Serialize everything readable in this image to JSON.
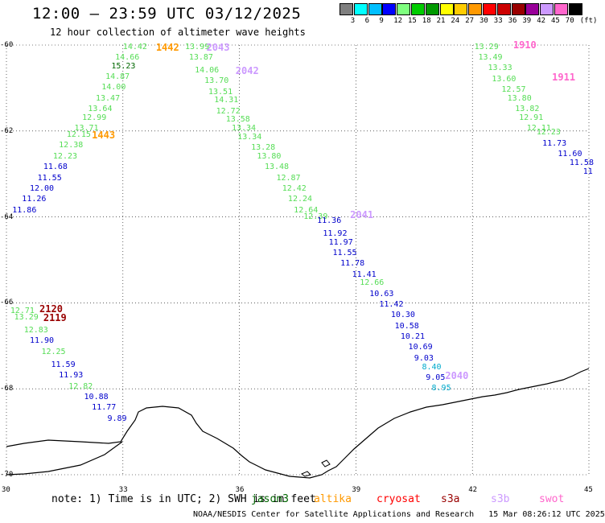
{
  "header": {
    "title": "12:00 – 23:59 UTC 03/12/2025",
    "subtitle": "12 hour collection of altimeter wave heights"
  },
  "legend": {
    "unit": "(ft)",
    "colors": [
      "#7f7f7f",
      "#00ffff",
      "#00bfff",
      "#0000ff",
      "#7fff7f",
      "#00cc00",
      "#009900",
      "#ffff00",
      "#ffcc00",
      "#ff9900",
      "#ff0000",
      "#cc0000",
      "#990000",
      "#990099",
      "#cc99ff",
      "#ff66cc",
      "#000000"
    ],
    "labels": [
      "3",
      "6",
      "9",
      "12",
      "15",
      "18",
      "21",
      "24",
      "27",
      "30",
      "33",
      "36",
      "39",
      "42",
      "45",
      "70"
    ]
  },
  "axes": {
    "y_labels": [
      "-60",
      "-62",
      "-64",
      "-66",
      "-68",
      "-70"
    ],
    "x_labels": [
      "30",
      "33",
      "36",
      "39",
      "42",
      "45"
    ]
  },
  "chart_data": {
    "type": "map",
    "lon_range": [
      30,
      45
    ],
    "lat_range": [
      -70,
      -60
    ],
    "tracks": [
      {
        "points": [
          {
            "v": "14.42",
            "lat": -60.05,
            "lon": 33.0,
            "c": "lg"
          },
          {
            "v": "14.66",
            "lat": -60.3,
            "lon": 32.8,
            "c": "lg"
          },
          {
            "v": "15.23",
            "lat": -60.5,
            "lon": 32.7,
            "c": "dg"
          },
          {
            "v": "14.87",
            "lat": -60.75,
            "lon": 32.55,
            "c": "lg"
          },
          {
            "v": "14.00",
            "lat": -61.0,
            "lon": 32.45,
            "c": "lg"
          },
          {
            "v": "13.47",
            "lat": -61.25,
            "lon": 32.3,
            "c": "lg"
          },
          {
            "v": "13.64",
            "lat": -61.5,
            "lon": 32.1,
            "c": "lg"
          },
          {
            "v": "12.99",
            "lat": -61.7,
            "lon": 31.95,
            "c": "lg"
          },
          {
            "v": "13.71",
            "lat": -61.95,
            "lon": 31.75,
            "c": "lg"
          },
          {
            "v": "12.15",
            "lat": -62.1,
            "lon": 31.55,
            "c": "lg"
          },
          {
            "v": "12.38",
            "lat": -62.35,
            "lon": 31.35,
            "c": "lg"
          },
          {
            "v": "12.23",
            "lat": -62.6,
            "lon": 31.2,
            "c": "lg"
          },
          {
            "v": "11.68",
            "lat": -62.85,
            "lon": 30.95,
            "c": "b"
          },
          {
            "v": "11.55",
            "lat": -63.1,
            "lon": 30.8,
            "c": "b"
          },
          {
            "v": "12.00",
            "lat": -63.35,
            "lon": 30.6,
            "c": "b"
          },
          {
            "v": "11.26",
            "lat": -63.6,
            "lon": 30.4,
            "c": "b"
          },
          {
            "v": "11.86",
            "lat": -63.85,
            "lon": 30.15,
            "c": "b"
          }
        ]
      },
      {
        "points": [
          {
            "v": "13.99",
            "lat": -60.05,
            "lon": 34.6,
            "c": "lg"
          },
          {
            "v": "13.87",
            "lat": -60.3,
            "lon": 34.7,
            "c": "lg"
          },
          {
            "v": "14.06",
            "lat": -60.6,
            "lon": 34.85,
            "c": "lg"
          },
          {
            "v": "13.70",
            "lat": -60.85,
            "lon": 35.1,
            "c": "lg"
          },
          {
            "v": "13.51",
            "lat": -61.1,
            "lon": 35.2,
            "c": "lg"
          },
          {
            "v": "14.31",
            "lat": -61.3,
            "lon": 35.35,
            "c": "lg"
          },
          {
            "v": "12.72",
            "lat": -61.55,
            "lon": 35.4,
            "c": "lg"
          },
          {
            "v": "13.58",
            "lat": -61.75,
            "lon": 35.65,
            "c": "lg"
          },
          {
            "v": "13.34",
            "lat": -61.95,
            "lon": 35.8,
            "c": "lg"
          },
          {
            "v": "13.34",
            "lat": -62.15,
            "lon": 35.95,
            "c": "lg"
          },
          {
            "v": "13.28",
            "lat": -62.4,
            "lon": 36.3,
            "c": "lg"
          },
          {
            "v": "13.80",
            "lat": -62.6,
            "lon": 36.45,
            "c": "lg"
          },
          {
            "v": "13.48",
            "lat": -62.85,
            "lon": 36.65,
            "c": "lg"
          },
          {
            "v": "12.87",
            "lat": -63.1,
            "lon": 36.95,
            "c": "lg"
          },
          {
            "v": "12.42",
            "lat": -63.35,
            "lon": 37.1,
            "c": "lg"
          },
          {
            "v": "12.24",
            "lat": -63.6,
            "lon": 37.25,
            "c": "lg"
          },
          {
            "v": "12.64",
            "lat": -63.85,
            "lon": 37.4,
            "c": "lg"
          },
          {
            "v": "12.39",
            "lat": -64.0,
            "lon": 37.65,
            "c": "lg"
          },
          {
            "v": "11.36",
            "lat": -64.1,
            "lon": 38.0,
            "c": "b"
          },
          {
            "v": "11.92",
            "lat": -64.4,
            "lon": 38.15,
            "c": "b"
          },
          {
            "v": "11.97",
            "lat": -64.6,
            "lon": 38.3,
            "c": "b"
          },
          {
            "v": "11.55",
            "lat": -64.85,
            "lon": 38.4,
            "c": "b"
          },
          {
            "v": "11.78",
            "lat": -65.1,
            "lon": 38.6,
            "c": "b"
          },
          {
            "v": "11.41",
            "lat": -65.35,
            "lon": 38.9,
            "c": "b"
          },
          {
            "v": "12.66",
            "lat": -65.55,
            "lon": 39.1,
            "c": "lg"
          },
          {
            "v": "10.63",
            "lat": -65.8,
            "lon": 39.35,
            "c": "b"
          },
          {
            "v": "11.42",
            "lat": -66.05,
            "lon": 39.6,
            "c": "b"
          },
          {
            "v": "10.30",
            "lat": -66.3,
            "lon": 39.9,
            "c": "b"
          },
          {
            "v": "10.58",
            "lat": -66.55,
            "lon": 40.0,
            "c": "b"
          },
          {
            "v": "10.21",
            "lat": -66.8,
            "lon": 40.15,
            "c": "b"
          },
          {
            "v": "10.69",
            "lat": -67.05,
            "lon": 40.35,
            "c": "b"
          },
          {
            "v": "9.03",
            "lat": -67.3,
            "lon": 40.5,
            "c": "b"
          },
          {
            "v": "8.40",
            "lat": -67.5,
            "lon": 40.7,
            "c": "c"
          },
          {
            "v": "9.05",
            "lat": -67.75,
            "lon": 40.8,
            "c": "b"
          },
          {
            "v": "8.95",
            "lat": -68.0,
            "lon": 40.95,
            "c": "c"
          }
        ]
      },
      {
        "points": [
          {
            "v": "13.29",
            "lat": -60.05,
            "lon": 42.05,
            "c": "lg"
          },
          {
            "v": "13.49",
            "lat": -60.3,
            "lon": 42.15,
            "c": "lg"
          },
          {
            "v": "13.33",
            "lat": -60.55,
            "lon": 42.4,
            "c": "lg"
          },
          {
            "v": "13.60",
            "lat": -60.8,
            "lon": 42.5,
            "c": "lg"
          },
          {
            "v": "12.57",
            "lat": -61.05,
            "lon": 42.75,
            "c": "lg"
          },
          {
            "v": "13.80",
            "lat": -61.25,
            "lon": 42.9,
            "c": "lg"
          },
          {
            "v": "13.82",
            "lat": -61.5,
            "lon": 43.1,
            "c": "lg"
          },
          {
            "v": "12.91",
            "lat": -61.7,
            "lon": 43.2,
            "c": "lg"
          },
          {
            "v": "12.11",
            "lat": -61.95,
            "lon": 43.4,
            "c": "lg"
          },
          {
            "v": "12.23",
            "lat": -62.05,
            "lon": 43.65,
            "c": "lg"
          },
          {
            "v": "11.73",
            "lat": -62.3,
            "lon": 43.8,
            "c": "b"
          },
          {
            "v": "11.60",
            "lat": -62.55,
            "lon": 44.2,
            "c": "b"
          },
          {
            "v": "11.58",
            "lat": -62.75,
            "lon": 44.5,
            "c": "b"
          },
          {
            "v": "11",
            "lat": -62.95,
            "lon": 44.85,
            "c": "b"
          }
        ]
      },
      {
        "points": [
          {
            "v": "12.71",
            "lat": -66.2,
            "lon": 30.1,
            "c": "lg"
          },
          {
            "v": "13.29",
            "lat": -66.35,
            "lon": 30.2,
            "c": "lg"
          },
          {
            "v": "12.83",
            "lat": -66.65,
            "lon": 30.45,
            "c": "lg"
          },
          {
            "v": "11.90",
            "lat": -66.9,
            "lon": 30.6,
            "c": "b"
          },
          {
            "v": "12.25",
            "lat": -67.15,
            "lon": 30.9,
            "c": "lg"
          },
          {
            "v": "11.59",
            "lat": -67.45,
            "lon": 31.15,
            "c": "b"
          },
          {
            "v": "11.93",
            "lat": -67.7,
            "lon": 31.35,
            "c": "b"
          },
          {
            "v": "12.82",
            "lat": -67.95,
            "lon": 31.6,
            "c": "lg"
          },
          {
            "v": "10.88",
            "lat": -68.2,
            "lon": 32.0,
            "c": "b"
          },
          {
            "v": "11.77",
            "lat": -68.45,
            "lon": 32.2,
            "c": "b"
          },
          {
            "v": "9.89",
            "lat": -68.7,
            "lon": 32.6,
            "c": "b"
          }
        ]
      }
    ],
    "pass_labels": [
      {
        "text": "1442",
        "lat": -60.05,
        "lon": 33.85,
        "mission": "altika"
      },
      {
        "text": "2043",
        "lat": -60.05,
        "lon": 35.15,
        "mission": "s3b"
      },
      {
        "text": "2042",
        "lat": -60.6,
        "lon": 35.9,
        "mission": "s3b"
      },
      {
        "text": "1443",
        "lat": -62.1,
        "lon": 32.2,
        "mission": "altika"
      },
      {
        "text": "2041",
        "lat": -63.95,
        "lon": 38.85,
        "mission": "s3b"
      },
      {
        "text": "2040",
        "lat": -67.7,
        "lon": 41.3,
        "mission": "s3b"
      },
      {
        "text": "1910",
        "lat": -60.0,
        "lon": 43.05,
        "mission": "swot"
      },
      {
        "text": "1911",
        "lat": -60.75,
        "lon": 44.05,
        "mission": "swot"
      },
      {
        "text": "2120",
        "lat": -66.15,
        "lon": 30.85,
        "mission": "s3a"
      },
      {
        "text": "2119",
        "lat": -66.35,
        "lon": 30.95,
        "mission": "s3a"
      }
    ]
  },
  "note": "note: 1) Time is in UTC; 2) SWH is in feet",
  "missions": [
    {
      "name": "jason3",
      "color": "#006600"
    },
    {
      "name": "altika",
      "color": "#ff9900"
    },
    {
      "name": "cryosat",
      "color": "#ff0000"
    },
    {
      "name": "s3a",
      "color": "#990000"
    },
    {
      "name": "s3b",
      "color": "#cc99ff"
    },
    {
      "name": "swot",
      "color": "#ff66cc"
    }
  ],
  "footer": "NOAA/NESDIS Center for Satellite Applications and Research   15 Mar 08:26:12 UTC 2025"
}
